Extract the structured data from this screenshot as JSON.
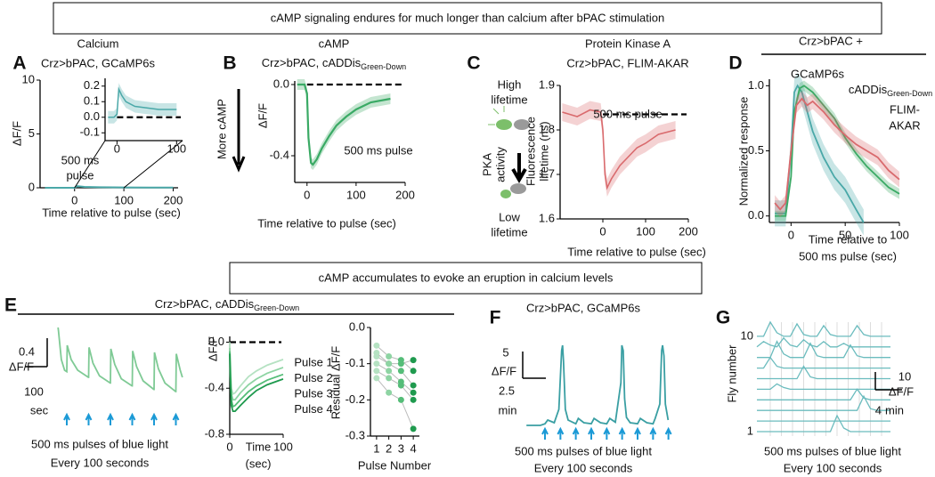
{
  "header_top": "cAMP signaling endures for much longer than calcium after bPAC stimulation",
  "header_bottom": "cAMP accumulates to evoke an eruption in calcium levels",
  "panel_a": {
    "label": "A",
    "title": "Calcium",
    "subtitle": "Crz>bPAC, GCaMP6s",
    "ylabel": "ΔF/F",
    "xlabel": "Time relative to pulse (sec)",
    "annotation": [
      "500 ms",
      "pulse"
    ],
    "xlim": [
      -70,
      210
    ],
    "ylim": [
      0,
      10
    ],
    "xticks": [
      0,
      100,
      200
    ],
    "yticks": [
      0,
      5,
      10
    ],
    "series": [
      {
        "color": "#4aa8a8",
        "x": [
          -60,
          -20,
          0,
          5,
          20,
          50,
          100,
          150,
          200
        ],
        "values": [
          0,
          0,
          0,
          0.15,
          0.08,
          0.05,
          0.03,
          0.02,
          0.02
        ],
        "band": 0.05
      }
    ],
    "inset": {
      "xlim": [
        -20,
        110
      ],
      "ylim": [
        -0.15,
        0.25
      ],
      "xticks": [
        0,
        100
      ],
      "yticks": [
        0.2,
        0.1,
        {
          "value": 0,
          "label": "0.0"
        },
        -0.1
      ],
      "reference": 0,
      "series": [
        {
          "color": "#4aa8a8",
          "x": [
            -15,
            -5,
            0,
            3,
            8,
            15,
            30,
            50,
            70,
            100
          ],
          "values": [
            0,
            0,
            0.02,
            0.18,
            0.14,
            0.1,
            0.07,
            0.06,
            0.05,
            0.05
          ],
          "band": 0.04
        }
      ]
    }
  },
  "panel_b": {
    "label": "B",
    "title": "cAMP",
    "subtitle": "Crz>bPAC, cADDis",
    "subtitle_sub": "Green-Down",
    "ylabel": "ΔF/F",
    "side_label": "More cAMP",
    "annotation": "500 ms pulse",
    "xlabel": "Time relative to pulse (sec)",
    "xlim": [
      -25,
      200
    ],
    "ylim": [
      -0.55,
      0.02
    ],
    "xticks": [
      0,
      100,
      200
    ],
    "yticks": [
      {
        "value": 0,
        "label": "0.0"
      },
      -0.4
    ],
    "reference": 0,
    "series": [
      {
        "color": "#3aaa65",
        "x": [
          -20,
          -5,
          0,
          3,
          8,
          12,
          20,
          30,
          45,
          60,
          80,
          100,
          130,
          170
        ],
        "values": [
          0,
          0,
          -0.05,
          -0.3,
          -0.44,
          -0.45,
          -0.42,
          -0.36,
          -0.29,
          -0.23,
          -0.18,
          -0.14,
          -0.1,
          -0.08
        ],
        "band": 0.03
      }
    ]
  },
  "panel_c": {
    "label": "C",
    "title": "Protein Kinase A",
    "subtitle": "Crz>bPAC, FLIM-AKAR",
    "ylabel": [
      "Fluorescence",
      "lifetime (ns)"
    ],
    "annotation": "500 ms pulse",
    "xlabel": "Time relative to pulse (sec)",
    "diagram": {
      "top": [
        "High",
        "lifetime"
      ],
      "side": [
        "PKA",
        "activity"
      ],
      "bottom": [
        "Low",
        "lifetime"
      ]
    },
    "xlim": [
      -100,
      200
    ],
    "ylim": [
      1.6,
      1.9
    ],
    "xticks": [
      0,
      100,
      200
    ],
    "yticks": [
      1.6,
      1.7,
      1.8,
      1.9
    ],
    "reference": 1.835,
    "series": [
      {
        "color": "#d96a6d",
        "x": [
          -95,
          -60,
          -30,
          -5,
          0,
          5,
          10,
          20,
          40,
          60,
          80,
          100,
          130,
          170
        ],
        "values": [
          1.84,
          1.83,
          1.845,
          1.84,
          1.8,
          1.7,
          1.67,
          1.69,
          1.72,
          1.74,
          1.76,
          1.77,
          1.79,
          1.8
        ],
        "band": 0.02
      }
    ]
  },
  "panel_d": {
    "label": "D",
    "header": "Crz>bPAC +",
    "ylabel": "Normalized response",
    "xlabel": [
      "Time relative to",
      "500 ms pulse (sec)"
    ],
    "xlim": [
      -20,
      100
    ],
    "ylim": [
      -0.05,
      1.05
    ],
    "xticks": [
      0,
      50,
      100
    ],
    "yticks": [
      {
        "value": 0,
        "label": "0.0"
      },
      0.5,
      {
        "value": 1,
        "label": "1.0"
      }
    ],
    "series": [
      {
        "name": "GCaMP6s",
        "color": "#4aa8a8",
        "x": [
          -15,
          -5,
          0,
          3,
          6,
          10,
          15,
          20,
          30,
          40,
          50,
          60,
          67
        ],
        "values": [
          0.02,
          0.02,
          0.5,
          0.95,
          1,
          0.95,
          0.8,
          0.65,
          0.45,
          0.3,
          0.2,
          0.05,
          -0.05
        ],
        "band": 0.1
      },
      {
        "name": "cADDis",
        "name_sub": "Green-Down",
        "color": "#3aaa65",
        "x": [
          -15,
          -5,
          0,
          3,
          8,
          12,
          20,
          30,
          40,
          50,
          60,
          70,
          80,
          90,
          100
        ],
        "values": [
          0,
          0,
          0.3,
          0.8,
          0.98,
          1,
          0.95,
          0.85,
          0.75,
          0.6,
          0.48,
          0.38,
          0.3,
          0.22,
          0.17
        ],
        "band": 0.04
      },
      {
        "name": [
          "FLIM-",
          "AKAR"
        ],
        "color": "#d96a6d",
        "x": [
          -15,
          -10,
          -5,
          0,
          5,
          10,
          15,
          20,
          30,
          40,
          50,
          60,
          70,
          80,
          90,
          100
        ],
        "values": [
          0.1,
          0.05,
          0.1,
          0.5,
          0.85,
          0.9,
          0.85,
          0.88,
          0.8,
          0.7,
          0.62,
          0.55,
          0.5,
          0.45,
          0.35,
          0.28
        ],
        "band": 0.06
      }
    ]
  },
  "panel_e": {
    "label": "E",
    "header": "Crz>bPAC, cADDis",
    "header_sub": "Green-Down",
    "trace": {
      "color": "#7fca95",
      "scale_y": 0.4,
      "scale_y_label": "ΔF/F",
      "scale_x": 100,
      "scale_x_label": "sec",
      "x": [
        -40,
        -38,
        -25,
        -10,
        0,
        2,
        20,
        50,
        99,
        100,
        102,
        120,
        150,
        199,
        200,
        202,
        220,
        250,
        299,
        300,
        302,
        320,
        350,
        399,
        400,
        402,
        420,
        450,
        499,
        500,
        502,
        520,
        530
      ],
      "values": [
        0,
        -0.05,
        -0.45,
        -0.6,
        -0.62,
        -0.25,
        -0.45,
        -0.6,
        -0.7,
        -0.7,
        -0.28,
        -0.5,
        -0.68,
        -0.78,
        -0.78,
        -0.3,
        -0.52,
        -0.72,
        -0.82,
        -0.82,
        -0.33,
        -0.55,
        -0.75,
        -0.87,
        -0.87,
        -0.35,
        -0.58,
        -0.78,
        -0.9,
        -0.9,
        -0.37,
        -0.6,
        -0.7
      ],
      "pulse_times": [
        0,
        100,
        200,
        300,
        400,
        500
      ]
    },
    "caption": [
      "500 ms pulses of blue light",
      "Every 100 seconds"
    ],
    "plot": {
      "ylabel": "ΔF/F",
      "xlabel": [
        "Time",
        "(sec)"
      ],
      "xlim": [
        0,
        100
      ],
      "ylim": [
        -0.8,
        0.05
      ],
      "xticks": [
        0,
        100
      ],
      "yticks": [
        {
          "value": 0,
          "label": "0.0"
        },
        -0.4,
        -0.8
      ],
      "reference": 0,
      "series": [
        {
          "name": "Pulse 1",
          "color": "#b5e2c2",
          "x": [
            0,
            1,
            3,
            6,
            10,
            20,
            35,
            50,
            70,
            100
          ],
          "values": [
            0,
            -0.15,
            -0.4,
            -0.45,
            -0.44,
            -0.38,
            -0.3,
            -0.25,
            -0.2,
            -0.15
          ]
        },
        {
          "name": "Pulse 2",
          "color": "#8ed4a3",
          "x": [
            0,
            1,
            3,
            6,
            10,
            20,
            35,
            50,
            70,
            100
          ],
          "values": [
            -0.05,
            -0.2,
            -0.45,
            -0.5,
            -0.5,
            -0.44,
            -0.37,
            -0.32,
            -0.27,
            -0.22
          ]
        },
        {
          "name": "Pulse 3",
          "color": "#55bd78",
          "x": [
            0,
            1,
            3,
            6,
            10,
            20,
            35,
            50,
            70,
            100
          ],
          "values": [
            -0.08,
            -0.25,
            -0.5,
            -0.56,
            -0.55,
            -0.5,
            -0.43,
            -0.38,
            -0.33,
            -0.28
          ]
        },
        {
          "name": "Pulse 4",
          "color": "#1f9a4e",
          "x": [
            0,
            1,
            3,
            6,
            10,
            20,
            35,
            50,
            70,
            100
          ],
          "values": [
            -0.1,
            -0.3,
            -0.55,
            -0.6,
            -0.6,
            -0.55,
            -0.48,
            -0.42,
            -0.37,
            -0.32
          ]
        }
      ]
    },
    "residual": {
      "ylabel": "Residual ΔF/F",
      "xlabel": "Pulse Number",
      "xlim": [
        0.5,
        4.5
      ],
      "ylim": [
        -0.3,
        0
      ],
      "xticks": [
        1,
        2,
        3,
        4
      ],
      "yticks": [
        {
          "value": 0,
          "label": "0.0"
        },
        -0.1,
        -0.2,
        -0.3
      ],
      "x": [
        1,
        2,
        3,
        4
      ],
      "values": [
        [
          -0.08,
          -0.1,
          -0.12,
          -0.16
        ],
        [
          -0.1,
          -0.12,
          -0.15,
          -0.18
        ],
        [
          -0.12,
          -0.14,
          -0.16,
          -0.2
        ],
        [
          -0.05,
          -0.08,
          -0.09,
          -0.12
        ],
        [
          -0.14,
          -0.18,
          -0.2,
          -0.28
        ],
        [
          -0.07,
          -0.1,
          -0.1,
          -0.09
        ]
      ]
    }
  },
  "panel_f": {
    "label": "F",
    "title": "Crz>bPAC, GCaMP6s",
    "color": "#3a9fa3",
    "scale_y": 5,
    "scale_y_label": "ΔF/F",
    "scale_x": 2.5,
    "scale_x_label": "min",
    "x": [
      -2,
      -0.5,
      0,
      0.3,
      1,
      1.5,
      1.8,
      1.9,
      2,
      2.2,
      2.5,
      3.33,
      3.6,
      4.2,
      5,
      5.3,
      6,
      6.67,
      7,
      7.6,
      8.2,
      8.3,
      8.45,
      8.6,
      8.8,
      9.2,
      10,
      10.3,
      11,
      11.67,
      11.9,
      12.4,
      12.6,
      12.7,
      12.85,
      13,
      13.3
    ],
    "values": [
      0,
      0,
      0.3,
      1,
      0.5,
      3,
      14,
      15,
      12,
      3,
      1,
      0.3,
      1.3,
      0.5,
      0.3,
      1.3,
      0.5,
      0.3,
      1.3,
      0.6,
      8,
      15,
      14,
      5,
      1.5,
      0.5,
      0.3,
      1.3,
      0.5,
      0.3,
      1.3,
      4,
      14,
      15,
      13,
      4,
      1
    ],
    "pulse_times": [
      0,
      1.67,
      3.33,
      5,
      6.67,
      8.33,
      10,
      11.67,
      13.33
    ],
    "caption": [
      "500 ms pulses of blue light",
      "Every 100 seconds"
    ]
  },
  "panel_g": {
    "label": "G",
    "ylabel": "Fly number",
    "yticks": [
      1,
      10
    ],
    "color": "#6bbcbe",
    "scale_y": 10,
    "scale_y_label": "ΔF/F",
    "scale_x": 4,
    "scale_x_label": "min",
    "x": [
      0,
      1,
      2,
      3,
      4,
      5,
      6,
      7,
      8,
      9,
      10,
      11,
      12,
      13,
      14,
      15,
      16,
      17,
      18,
      19,
      20
    ],
    "flies": [
      [
        0,
        0,
        0,
        0,
        0,
        0,
        0,
        0,
        0,
        0,
        0,
        0,
        9,
        2,
        0,
        0,
        0,
        0,
        0,
        0,
        0
      ],
      [
        0,
        0,
        0,
        0,
        0,
        0,
        0,
        0,
        0,
        0,
        0,
        0,
        0,
        0,
        0,
        0,
        0,
        0,
        0,
        0,
        0
      ],
      [
        0,
        0,
        0,
        0,
        0,
        0,
        0,
        0,
        0,
        0,
        0,
        0,
        0,
        0,
        0,
        0,
        8,
        1,
        0,
        0,
        0
      ],
      [
        0,
        0,
        0,
        0,
        0,
        0,
        0,
        0,
        0,
        0,
        0,
        0,
        0,
        0,
        0,
        6,
        1,
        0,
        0,
        0,
        0
      ],
      [
        0,
        0,
        0,
        3,
        1,
        0,
        0,
        0,
        0,
        0,
        0,
        0,
        0,
        0,
        0,
        0,
        0,
        0,
        0,
        0,
        0
      ],
      [
        0,
        0,
        0,
        0,
        0,
        0,
        0,
        7,
        1,
        0,
        0,
        0,
        0,
        0,
        0,
        0,
        0,
        0,
        0,
        0,
        0
      ],
      [
        0,
        0,
        6,
        1,
        0,
        0,
        0,
        0,
        0,
        0,
        0,
        0,
        0,
        0,
        0,
        0,
        0,
        0,
        0,
        0,
        0
      ],
      [
        0,
        0,
        0,
        9,
        2,
        0,
        0,
        0,
        8,
        1,
        0,
        0,
        0,
        0,
        7,
        1,
        0,
        0,
        0,
        0,
        0
      ],
      [
        0,
        3,
        1,
        0,
        5,
        1,
        0,
        4,
        1,
        0,
        3,
        0,
        0,
        2,
        0,
        0,
        0,
        0,
        0,
        0,
        0
      ],
      [
        0,
        0,
        8,
        2,
        0,
        0,
        7,
        1,
        0,
        0,
        6,
        1,
        0,
        0,
        0,
        6,
        1,
        0,
        0,
        0,
        0
      ]
    ],
    "pulse_times": [
      2,
      3.67,
      5.33,
      7,
      8.67,
      10.33,
      12,
      13.67,
      15.33,
      17,
      18.67
    ],
    "caption": [
      "500 ms pulses of blue light",
      "Every 100 seconds"
    ]
  }
}
